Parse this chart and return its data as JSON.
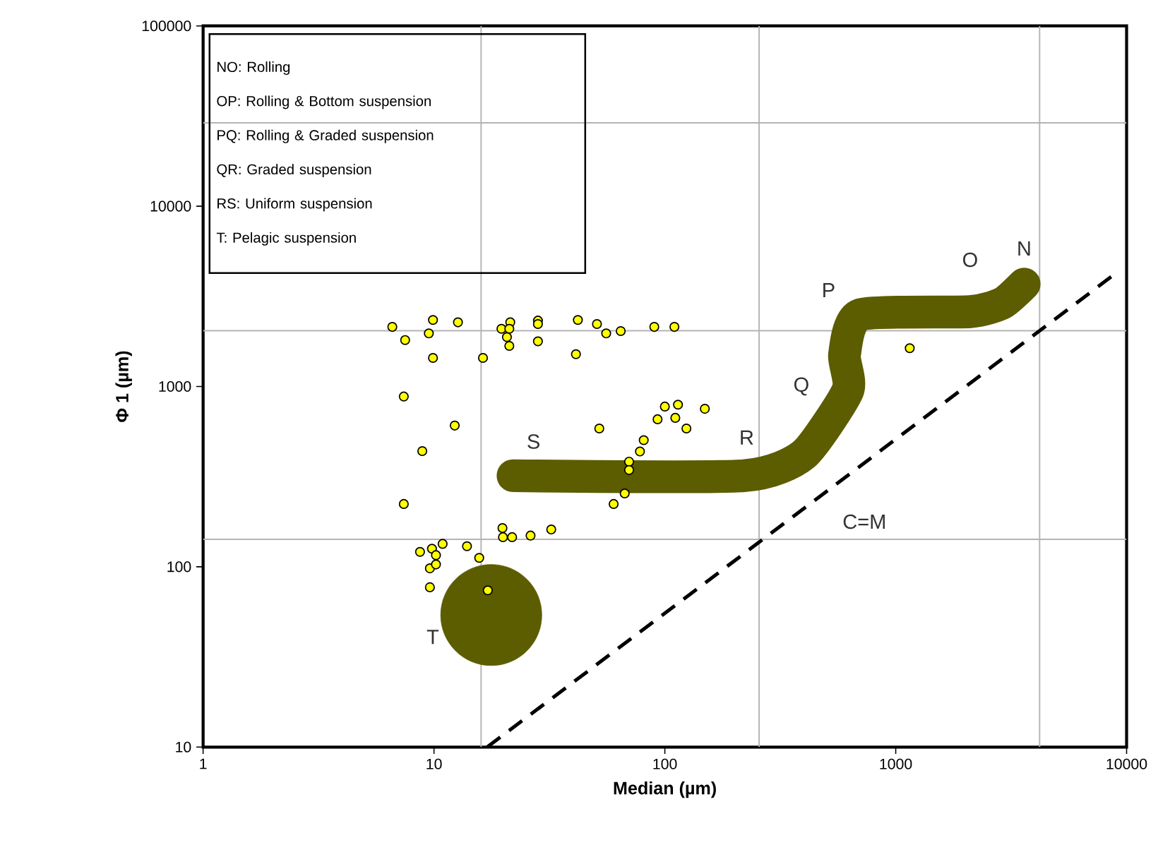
{
  "chart_data": {
    "type": "scatter",
    "xlabel": "Median (µm)",
    "ylabel": "Φ 1 (µm)",
    "log": "xy",
    "xlim": [
      1,
      10000
    ],
    "ylim": [
      10,
      100000
    ],
    "xticks": [
      1,
      10,
      100,
      1000,
      10000
    ],
    "yticks": [
      10,
      100,
      1000,
      10000,
      100000
    ],
    "ref_lines": [
      {
        "axis": "x",
        "value": 16,
        "color": "#b4b4b4"
      },
      {
        "axis": "x",
        "value": 256,
        "color": "#b4b4b4"
      },
      {
        "axis": "x",
        "value": 4200,
        "color": "#b4b4b4"
      },
      {
        "axis": "y",
        "value": 142,
        "color": "#b4b4b4"
      },
      {
        "axis": "y",
        "value": 2040,
        "color": "#b4b4b4"
      },
      {
        "axis": "y",
        "value": 29000,
        "color": "#b4b4b4"
      }
    ],
    "annotations": [
      "NO: Rolling",
      "OP: Rolling & Bottom suspension",
      "PQ: Rolling & Graded suspension",
      "QR: Graded suspension",
      "RS: Uniform suspension",
      "T: Pelagic suspension",
      {
        "text": "N",
        "x": 3600,
        "y": 3700
      },
      {
        "text": "O",
        "x": 2100,
        "y": 2600
      },
      {
        "text": "P",
        "x": 700,
        "y": 2500
      },
      {
        "text": "Q",
        "x": 620,
        "y": 950
      },
      {
        "text": "R",
        "x": 220,
        "y": 320
      },
      {
        "text": "S",
        "x": 22,
        "y": 320
      },
      {
        "text": "T",
        "x": 17.7,
        "y": 54
      },
      {
        "text": "C=M",
        "x": 500,
        "y": 261
      }
    ],
    "series": [
      {
        "type": "line",
        "line_style": "dashed",
        "color": "#000000",
        "x": [
          17,
          500,
          9100
        ],
        "values": [
          10,
          261,
          4300
        ]
      },
      {
        "type": "line",
        "color": "#5c5c00",
        "x": [
          22,
          220,
          400,
          620,
          600,
          700,
          2100,
          2900,
          3600
        ],
        "values": [
          320,
          320,
          420,
          950,
          1500,
          2500,
          2600,
          2900,
          3700
        ]
      },
      {
        "type": "bubble",
        "color": "#5c5c00",
        "x": [
          17.7
        ],
        "values": [
          54
        ],
        "sizes": [
          1
        ]
      },
      {
        "marker": "circle",
        "color": "#ffff00",
        "x": [
          6.6,
          7.5,
          9.9,
          9.5,
          12.7,
          9.9,
          16.3,
          19.6,
          21.4,
          21.2,
          20.7,
          21.2,
          28.2,
          28.2,
          28.2,
          42,
          41.2,
          50.8,
          55.7,
          64.4,
          90,
          110,
          7.4,
          12.3,
          8.9,
          7.4,
          52,
          100,
          114,
          93,
          111,
          124,
          149,
          81,
          78,
          70,
          70,
          67,
          60,
          19.8,
          19.9,
          21.8,
          26.2,
          32.2,
          10.9,
          8.7,
          9.8,
          10.2,
          9.6,
          10.2,
          9.6,
          13.9,
          15.7,
          17.1,
          1150
        ],
        "values": [
          2140,
          1810,
          2340,
          1970,
          2270,
          1440,
          1440,
          2090,
          2270,
          2090,
          1880,
          1680,
          2320,
          2220,
          1780,
          2340,
          1510,
          2220,
          1970,
          2030,
          2140,
          2140,
          880,
          607,
          438,
          223,
          585,
          774,
          793,
          658,
          670,
          585,
          752,
          504,
          436,
          383,
          344,
          255,
          223,
          164,
          146,
          146,
          149,
          161,
          134,
          121,
          126,
          116,
          98,
          103,
          77,
          130,
          112,
          74,
          1630
        ]
      }
    ]
  }
}
